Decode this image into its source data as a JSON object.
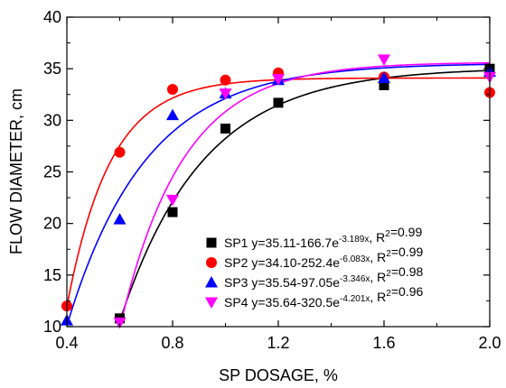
{
  "chart_data": {
    "type": "scatter",
    "title": "",
    "xlabel": "SP DOSAGE, %",
    "ylabel": "FLOW DIAMETER, cm",
    "xlim": [
      0.4,
      2.0
    ],
    "ylim": [
      10,
      40
    ],
    "xticks": [
      "0.4",
      "0.8",
      "1.2",
      "1.6",
      "2.0"
    ],
    "yticks": [
      "10",
      "15",
      "20",
      "25",
      "30",
      "35",
      "40"
    ],
    "grid": false,
    "legend_position": "bottom-right",
    "series": [
      {
        "name": "SP1",
        "marker": "square",
        "color": "#000000",
        "equation_text": "y=35.11-166.7e",
        "exponent_text": "-3.189x",
        "r2_value": "=0.99",
        "fit": {
          "a": 35.11,
          "b": 166.7,
          "k": 3.189
        },
        "points": [
          {
            "x": 0.6,
            "y": 10.8
          },
          {
            "x": 0.8,
            "y": 21.1
          },
          {
            "x": 1.0,
            "y": 29.2
          },
          {
            "x": 1.2,
            "y": 31.7
          },
          {
            "x": 1.6,
            "y": 33.4
          },
          {
            "x": 2.0,
            "y": 35.0
          }
        ]
      },
      {
        "name": "SP2",
        "marker": "circle",
        "color": "#ff0000",
        "equation_text": "y=34.10-252.4e",
        "exponent_text": "-6.083x",
        "r2_value": "=0.99",
        "fit": {
          "a": 34.1,
          "b": 252.4,
          "k": 6.083
        },
        "points": [
          {
            "x": 0.4,
            "y": 12.0
          },
          {
            "x": 0.6,
            "y": 26.9
          },
          {
            "x": 0.8,
            "y": 33.0
          },
          {
            "x": 1.0,
            "y": 33.9
          },
          {
            "x": 1.2,
            "y": 34.6
          },
          {
            "x": 1.6,
            "y": 34.2
          },
          {
            "x": 2.0,
            "y": 32.7
          }
        ]
      },
      {
        "name": "SP3",
        "marker": "triangle-up",
        "color": "#0000ff",
        "equation_text": "y=35.54-97.05e",
        "exponent_text": "-3.346x",
        "r2_value": "=0.98",
        "fit": {
          "a": 35.54,
          "b": 97.05,
          "k": 3.346
        },
        "points": [
          {
            "x": 0.4,
            "y": 10.6
          },
          {
            "x": 0.6,
            "y": 20.4
          },
          {
            "x": 0.8,
            "y": 30.5
          },
          {
            "x": 1.0,
            "y": 32.6
          },
          {
            "x": 1.2,
            "y": 33.9
          },
          {
            "x": 1.6,
            "y": 34.1
          },
          {
            "x": 2.0,
            "y": 34.7
          }
        ]
      },
      {
        "name": "SP4",
        "marker": "triangle-down",
        "color": "#ff00ff",
        "equation_text": "y=35.64-320.5e",
        "exponent_text": "-4.201x",
        "r2_value": "=0.96",
        "fit": {
          "a": 35.64,
          "b": 320.5,
          "k": 4.201
        },
        "points": [
          {
            "x": 0.6,
            "y": 10.4
          },
          {
            "x": 0.8,
            "y": 22.3
          },
          {
            "x": 1.0,
            "y": 32.6
          },
          {
            "x": 1.2,
            "y": 34.0
          },
          {
            "x": 1.6,
            "y": 35.9
          },
          {
            "x": 2.0,
            "y": 34.2
          }
        ]
      }
    ]
  }
}
